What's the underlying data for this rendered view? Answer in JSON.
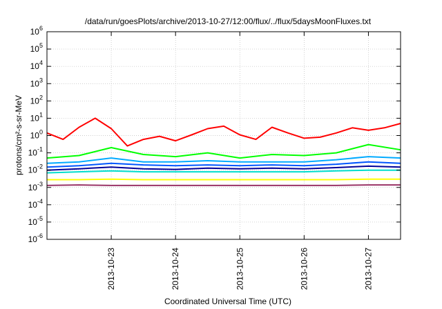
{
  "chart_data": {
    "type": "line",
    "title": "/data/run/goesPlots/archive/2013-10-27/12:00/flux/../flux/5daysMoonFluxes.txt",
    "xlabel": "Coordinated Universal Time (UTC)",
    "ylabel": "protons/cm²-s-sr-MeV",
    "yscale": "log",
    "ylim": [
      1e-06,
      1000000.0
    ],
    "xlim": [
      "2013-10-22T00:00",
      "2013-10-27T12:00"
    ],
    "xticks": [
      "2013-10-23",
      "2013-10-24",
      "2013-10-25",
      "2013-10-26",
      "2013-10-27"
    ],
    "ytick_exponents": [
      -6,
      -5,
      -4,
      -3,
      -2,
      -1,
      0,
      1,
      2,
      3,
      4,
      5,
      6
    ],
    "ytick_base": "10",
    "grid": true,
    "series": [
      {
        "color": "#ff0000",
        "x": [
          "2013-10-22T00:00",
          "2013-10-22T06:00",
          "2013-10-22T12:00",
          "2013-10-22T18:00",
          "2013-10-23T00:00",
          "2013-10-23T06:00",
          "2013-10-23T12:00",
          "2013-10-23T18:00",
          "2013-10-24T00:00",
          "2013-10-24T06:00",
          "2013-10-24T12:00",
          "2013-10-24T18:00",
          "2013-10-25T00:00",
          "2013-10-25T06:00",
          "2013-10-25T12:00",
          "2013-10-25T18:00",
          "2013-10-26T00:00",
          "2013-10-26T06:00",
          "2013-10-26T12:00",
          "2013-10-26T18:00",
          "2013-10-27T00:00",
          "2013-10-27T06:00",
          "2013-10-27T12:00"
        ],
        "values": [
          1.4,
          0.6,
          3.0,
          10.0,
          2.5,
          0.25,
          0.6,
          0.9,
          0.5,
          1.1,
          2.5,
          3.5,
          1.1,
          0.6,
          3.0,
          1.4,
          0.7,
          0.8,
          1.4,
          2.8,
          2.0,
          2.8,
          5.0
        ]
      },
      {
        "color": "#00ff00",
        "x": [
          "2013-10-22T00:00",
          "2013-10-22T12:00",
          "2013-10-23T00:00",
          "2013-10-23T12:00",
          "2013-10-24T00:00",
          "2013-10-24T12:00",
          "2013-10-25T00:00",
          "2013-10-25T12:00",
          "2013-10-26T00:00",
          "2013-10-26T12:00",
          "2013-10-27T00:00",
          "2013-10-27T12:00"
        ],
        "values": [
          0.05,
          0.07,
          0.2,
          0.08,
          0.06,
          0.1,
          0.05,
          0.08,
          0.07,
          0.1,
          0.3,
          0.15
        ]
      },
      {
        "color": "#00aaff",
        "x": [
          "2013-10-22T00:00",
          "2013-10-22T12:00",
          "2013-10-23T00:00",
          "2013-10-23T12:00",
          "2013-10-24T00:00",
          "2013-10-24T12:00",
          "2013-10-25T00:00",
          "2013-10-25T12:00",
          "2013-10-26T00:00",
          "2013-10-26T12:00",
          "2013-10-27T00:00",
          "2013-10-27T12:00"
        ],
        "values": [
          0.025,
          0.03,
          0.05,
          0.03,
          0.03,
          0.035,
          0.03,
          0.03,
          0.03,
          0.04,
          0.06,
          0.05
        ]
      },
      {
        "color": "#0055ff",
        "x": [
          "2013-10-22T00:00",
          "2013-10-22T12:00",
          "2013-10-23T00:00",
          "2013-10-23T12:00",
          "2013-10-24T00:00",
          "2013-10-24T12:00",
          "2013-10-25T00:00",
          "2013-10-25T12:00",
          "2013-10-26T00:00",
          "2013-10-26T12:00",
          "2013-10-27T00:00",
          "2013-10-27T12:00"
        ],
        "values": [
          0.015,
          0.018,
          0.025,
          0.02,
          0.018,
          0.02,
          0.018,
          0.02,
          0.018,
          0.022,
          0.03,
          0.025
        ]
      },
      {
        "color": "#000099",
        "x": [
          "2013-10-22T00:00",
          "2013-10-22T12:00",
          "2013-10-23T00:00",
          "2013-10-23T12:00",
          "2013-10-24T00:00",
          "2013-10-24T12:00",
          "2013-10-25T00:00",
          "2013-10-25T12:00",
          "2013-10-26T00:00",
          "2013-10-26T12:00",
          "2013-10-27T00:00",
          "2013-10-27T12:00"
        ],
        "values": [
          0.01,
          0.012,
          0.015,
          0.012,
          0.011,
          0.013,
          0.012,
          0.013,
          0.012,
          0.014,
          0.017,
          0.015
        ]
      },
      {
        "color": "#00ddcc",
        "x": [
          "2013-10-22T00:00",
          "2013-10-22T12:00",
          "2013-10-23T00:00",
          "2013-10-23T12:00",
          "2013-10-24T00:00",
          "2013-10-24T12:00",
          "2013-10-25T00:00",
          "2013-10-25T12:00",
          "2013-10-26T00:00",
          "2013-10-26T12:00",
          "2013-10-27T00:00",
          "2013-10-27T12:00"
        ],
        "values": [
          0.007,
          0.008,
          0.009,
          0.008,
          0.008,
          0.008,
          0.008,
          0.008,
          0.008,
          0.009,
          0.01,
          0.01
        ]
      },
      {
        "color": "#ffff00",
        "x": [
          "2013-10-22T00:00",
          "2013-10-22T12:00",
          "2013-10-23T00:00",
          "2013-10-23T12:00",
          "2013-10-24T00:00",
          "2013-10-24T12:00",
          "2013-10-25T00:00",
          "2013-10-25T12:00",
          "2013-10-26T00:00",
          "2013-10-26T12:00",
          "2013-10-27T00:00",
          "2013-10-27T12:00"
        ],
        "values": [
          0.0028,
          0.0028,
          0.003,
          0.0028,
          0.0028,
          0.0028,
          0.0028,
          0.0028,
          0.0028,
          0.0028,
          0.003,
          0.003
        ]
      },
      {
        "color": "#993366",
        "x": [
          "2013-10-22T00:00",
          "2013-10-22T12:00",
          "2013-10-23T00:00",
          "2013-10-23T12:00",
          "2013-10-24T00:00",
          "2013-10-24T12:00",
          "2013-10-25T00:00",
          "2013-10-25T12:00",
          "2013-10-26T00:00",
          "2013-10-26T12:00",
          "2013-10-27T00:00",
          "2013-10-27T12:00"
        ],
        "values": [
          0.0013,
          0.0014,
          0.0013,
          0.0013,
          0.0013,
          0.0013,
          0.0013,
          0.0013,
          0.0013,
          0.0013,
          0.0014,
          0.0014
        ]
      }
    ]
  }
}
